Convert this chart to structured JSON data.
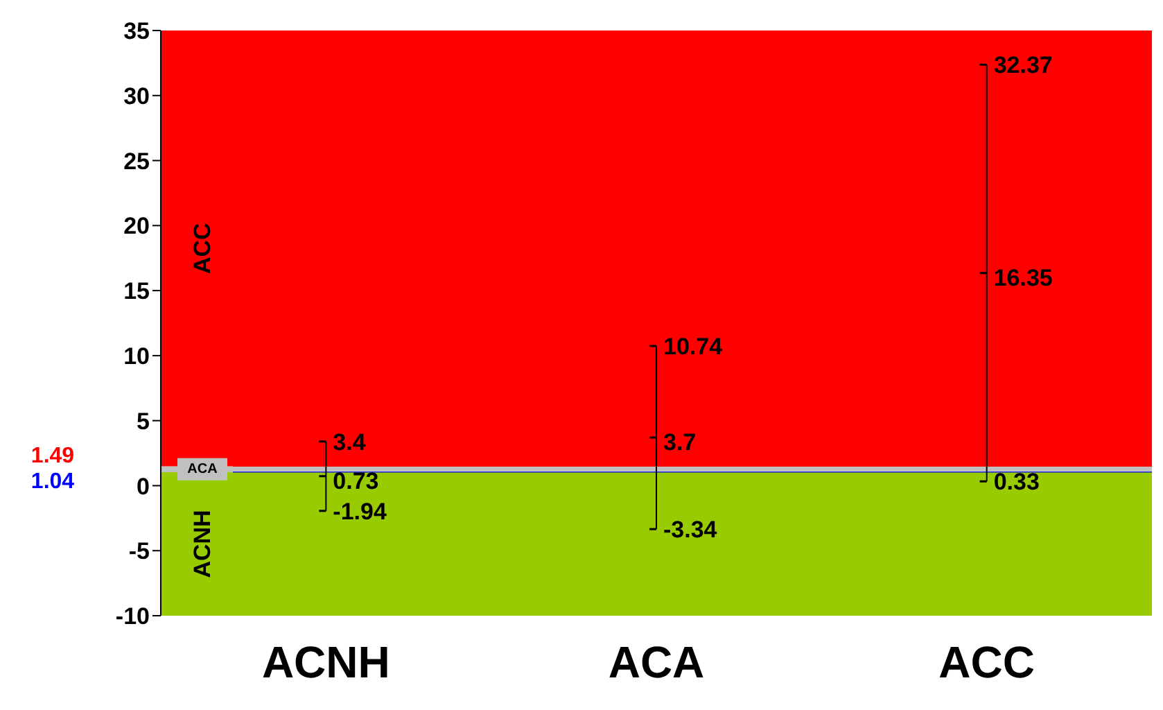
{
  "chart_data": {
    "type": "scatter",
    "categories": [
      "ACNH",
      "ACA",
      "ACC"
    ],
    "series": [
      {
        "color": "#000000",
        "values": [
          3.4,
          10.74,
          32.37
        ]
      },
      {
        "color": "#000000",
        "values": [
          0.73,
          3.7,
          16.35
        ],
        "errors": [
          [
            -1.94,
            3.4
          ],
          [
            -3.34,
            10.74
          ],
          [
            0.33,
            32.37
          ]
        ]
      },
      {
        "color": "#000000",
        "values": [
          -1.94,
          -3.34,
          0.33
        ]
      }
    ],
    "data_labels": true,
    "ylim": [
      -10,
      35
    ],
    "yticks": [
      -10,
      -5,
      0,
      5,
      10,
      15,
      20,
      25,
      30,
      35
    ],
    "bands": [
      {
        "axis": "y",
        "from": -10,
        "to": 1.04,
        "label": "ACNH",
        "color": "#99cc00"
      },
      {
        "axis": "y",
        "from": 1.04,
        "to": 1.49,
        "label": "ACA",
        "color": "#c0c0c0"
      },
      {
        "axis": "y",
        "from": 1.49,
        "to": 35,
        "label": "ACC",
        "color": "#ff0000"
      }
    ],
    "ref_lines": [
      {
        "axis": "y",
        "value": 1.49,
        "label": "1.49",
        "color": "#ff0000"
      },
      {
        "axis": "y",
        "value": 1.04,
        "label": "1.04",
        "color": "#0000ff"
      }
    ],
    "grid": false,
    "legend": false
  }
}
